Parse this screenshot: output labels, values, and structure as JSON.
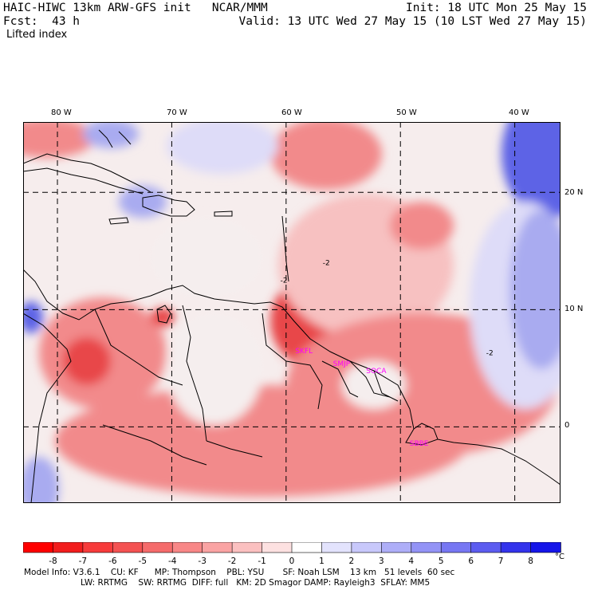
{
  "header": {
    "model_line": "HAIC-HIWC 13km ARW-GFS init   NCAR/MMM",
    "fcst_line": "Fcst:  43 h",
    "field_name": "Lifted index",
    "init_line": "Init: 18 UTC Mon 25 May 15",
    "valid_line": "Valid: 13 UTC Wed 27 May 15 (10 LST Wed 27 May 15)"
  },
  "map": {
    "lon_labels": [
      "80 W",
      "70 W",
      "60 W",
      "50 W",
      "40 W"
    ],
    "lat_labels": [
      "20 N",
      "10 N",
      "0"
    ],
    "lon_lines": [
      -80,
      -70,
      -60,
      -50,
      -40
    ],
    "lat_lines": [
      20,
      10,
      0
    ],
    "lon_range": [
      -83,
      -36
    ],
    "lat_range": [
      -6.5,
      26
    ],
    "grid_style": "dashed",
    "stations": [
      {
        "label": "SKFL",
        "lon": -58.5,
        "lat": 6.5
      },
      {
        "label": "SMJP",
        "lon": -55.2,
        "lat": 5.4
      },
      {
        "label": "SOCA",
        "lon": -52.3,
        "lat": 4.8
      },
      {
        "label": "SBBE",
        "lon": -48.5,
        "lat": -1.4
      }
    ],
    "contour_labels": [
      {
        "text": "-2",
        "lon": -56.8,
        "lat": 13.8
      },
      {
        "text": "-2",
        "lon": -42.5,
        "lat": 6.1
      },
      {
        "text": "-2",
        "lon": -60.5,
        "lat": 12.3
      }
    ],
    "colors": {
      "strong_neg": "#e8474a",
      "mid_neg": "#f28a8b",
      "weak_neg": "#f7c1c1",
      "neutral": "#f5eeee",
      "weak_pos": "#dedcf8",
      "mid_pos": "#a9abf0",
      "strong_pos": "#5d63e6"
    }
  },
  "colorbar": {
    "tick_labels": [
      "-8",
      "-7",
      "-6",
      "-5",
      "-4",
      "-3",
      "-2",
      "-1",
      "0",
      "1",
      "2",
      "3",
      "4",
      "5",
      "6",
      "7",
      "8"
    ],
    "unit": "°C",
    "colors": [
      "#ff0000",
      "#f21d1d",
      "#f73b3b",
      "#f45252",
      "#f56b6b",
      "#f88787",
      "#faa3a3",
      "#fbc0c0",
      "#fde1e1",
      "#ffffff",
      "#e3e3fd",
      "#c8c8fb",
      "#aeaef8",
      "#9393f6",
      "#7777f3",
      "#5c5cf0",
      "#3333ec",
      "#1515e9"
    ]
  },
  "footer": {
    "line1": "Model Info: V3.6.1    CU: KF      MP: Thompson    PBL: YSU       SF: Noah LSM    13 km   51 levels  60 sec",
    "line2": "LW: RRTMG    SW: RRTMG  DIFF: full   KM: 2D Smagor DAMP: Rayleigh3  SFLAY: MM5"
  }
}
